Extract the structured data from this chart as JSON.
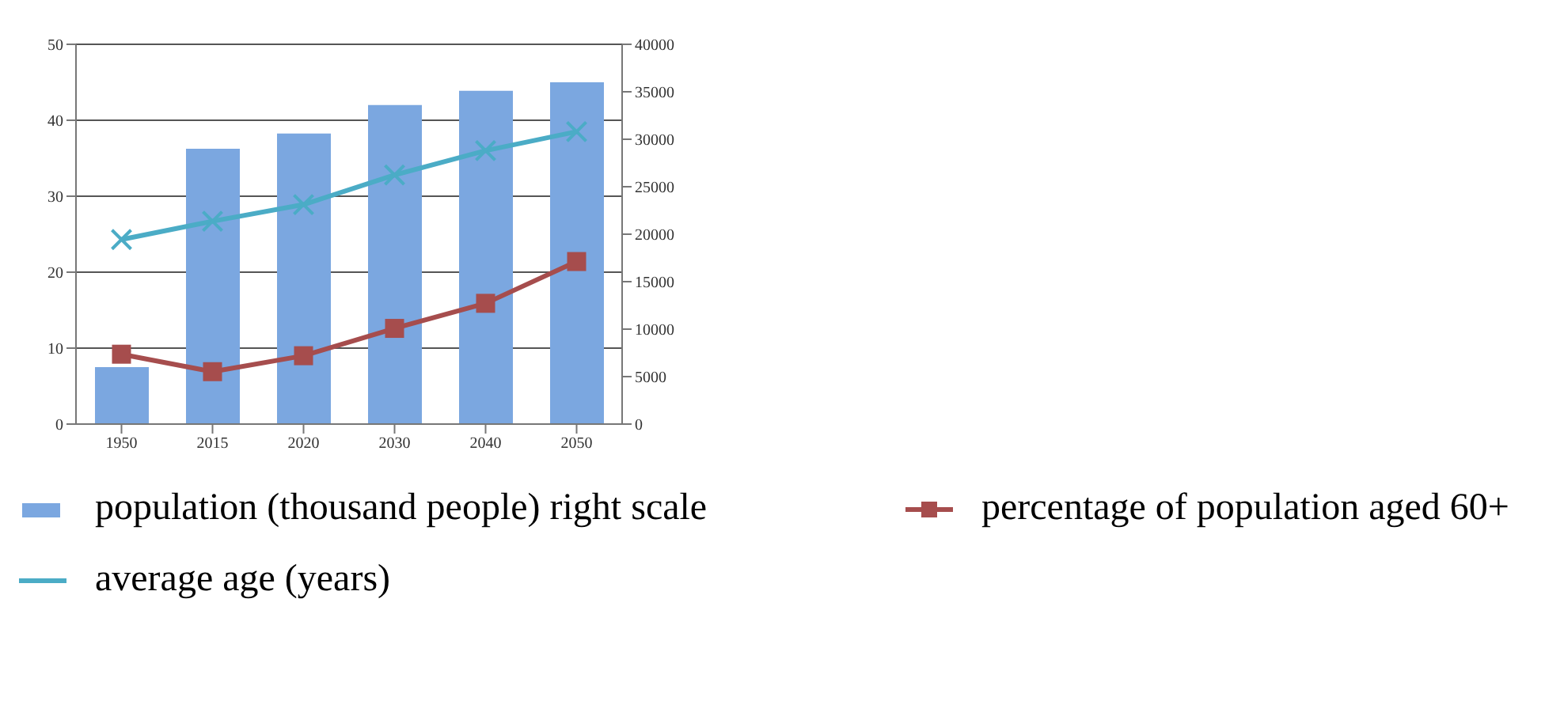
{
  "chart_data": {
    "type": "bar",
    "categories": [
      "1950",
      "2015",
      "2020",
      "2030",
      "2040",
      "2050"
    ],
    "series": [
      {
        "name": "population (thousand people) right scale",
        "axis": "y2",
        "color": "#7ba7e0",
        "values": [
          6000,
          29000,
          30600,
          33600,
          35100,
          36000
        ]
      },
      {
        "name": "percentage of population aged 60+",
        "type": "line",
        "color": "#a64d4d",
        "marker": "square",
        "values": [
          9.2,
          6.9,
          9.0,
          12.6,
          15.9,
          21.4
        ]
      },
      {
        "name": "average age (years)",
        "type": "line",
        "color": "#4bacc6",
        "marker": "cross",
        "values": [
          24.3,
          26.7,
          28.9,
          32.8,
          36,
          38.5
        ]
      }
    ],
    "ylim": [
      0,
      50
    ],
    "yticks": [
      0,
      10,
      20,
      30,
      40,
      50
    ],
    "y2lim": [
      0,
      40000
    ],
    "y2ticks": [
      0,
      5000,
      10000,
      15000,
      20000,
      25000,
      30000,
      35000,
      40000
    ],
    "grid": "y",
    "legend": "bottom"
  }
}
